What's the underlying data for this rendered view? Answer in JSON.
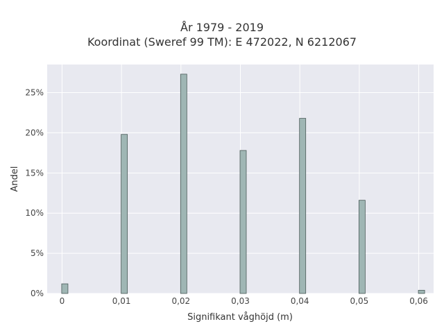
{
  "chart_data": {
    "type": "bar",
    "title_line1": "År 1979 - 2019",
    "title_line2": "Koordinat (Sweref 99 TM): E 472022, N 6212067",
    "xlabel": "Signifikant våghöjd (m)",
    "ylabel": "Andel",
    "x_ticks": [
      "0",
      "0,01",
      "0,02",
      "0,03",
      "0,04",
      "0,05",
      "0,06"
    ],
    "y_ticks": [
      "0%",
      "5%",
      "10%",
      "15%",
      "20%",
      "25%"
    ],
    "xlim": [
      -0.0025,
      0.0625
    ],
    "ylim": [
      0,
      28.5
    ],
    "x": [
      0,
      0.01,
      0.02,
      0.03,
      0.04,
      0.05,
      0.06
    ],
    "values": [
      1.2,
      19.8,
      27.3,
      17.8,
      21.8,
      11.6,
      0.4
    ],
    "bar_color": "#9fb6b4",
    "bar_edge": "#4a5a58",
    "plot_bg": "#e8e9f0",
    "grid": true
  }
}
